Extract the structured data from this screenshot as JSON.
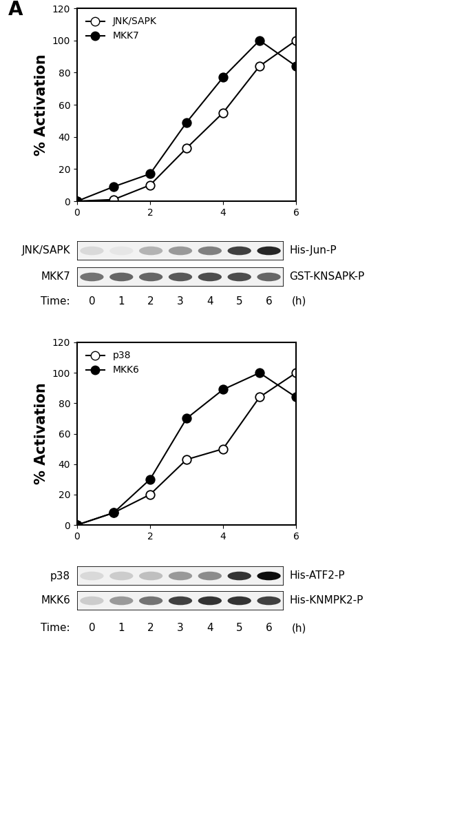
{
  "panel_label": "A",
  "chart_data": [
    {
      "type": "line",
      "y_label": "% Activation",
      "x": [
        0,
        1,
        2,
        3,
        4,
        5,
        6
      ],
      "xlim": [
        0,
        6
      ],
      "xticks": [
        0,
        2,
        4,
        6
      ],
      "ylim": [
        0,
        120
      ],
      "yticks": [
        0,
        20,
        40,
        60,
        80,
        100,
        120
      ],
      "legend": "upper left",
      "series": [
        {
          "name": "JNK/SAPK",
          "color": "#ffffff",
          "marker": "o",
          "values": [
            0,
            1,
            10,
            33,
            55,
            84,
            100
          ]
        },
        {
          "name": "MKK7",
          "color": "#000000",
          "marker": "o",
          "values": [
            0,
            9,
            17,
            49,
            77,
            100,
            84
          ]
        }
      ],
      "blots": [
        {
          "name": "JNK/SAPK",
          "product": "His-Jun-P",
          "intensity": [
            0.15,
            0.1,
            0.3,
            0.4,
            0.5,
            0.75,
            0.85
          ]
        },
        {
          "name": "MKK7",
          "product": "GST-KNSAPK-P",
          "intensity": [
            0.55,
            0.6,
            0.6,
            0.65,
            0.7,
            0.7,
            0.6
          ]
        }
      ],
      "time_label": "Time:",
      "time_unit": "(h)"
    },
    {
      "type": "line",
      "y_label": "% Activation",
      "x": [
        0,
        1,
        2,
        3,
        4,
        5,
        6
      ],
      "xlim": [
        0,
        6
      ],
      "xticks": [
        0,
        2,
        4,
        6
      ],
      "ylim": [
        0,
        120
      ],
      "yticks": [
        0,
        20,
        40,
        60,
        80,
        100,
        120
      ],
      "legend": "upper left",
      "series": [
        {
          "name": "p38",
          "color": "#ffffff",
          "marker": "o",
          "values": [
            0,
            8,
            20,
            43,
            50,
            84,
            100
          ]
        },
        {
          "name": "MKK6",
          "color": "#000000",
          "marker": "o",
          "values": [
            0,
            8,
            30,
            70,
            89,
            100,
            84
          ]
        }
      ],
      "blots": [
        {
          "name": "p38",
          "product": "His-ATF2-P",
          "intensity": [
            0.15,
            0.2,
            0.25,
            0.4,
            0.45,
            0.8,
            0.95
          ]
        },
        {
          "name": "MKK6",
          "product": "His-KNMPK2-P",
          "intensity": [
            0.2,
            0.4,
            0.55,
            0.75,
            0.8,
            0.8,
            0.75
          ]
        }
      ],
      "time_label": "Time:",
      "time_unit": "(h)"
    }
  ]
}
